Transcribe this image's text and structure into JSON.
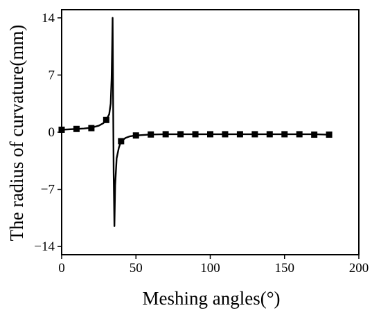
{
  "chart_data": {
    "type": "line",
    "title": "",
    "xlabel": "Meshing angles(°)",
    "ylabel": "The  radius of curvature(mm)",
    "xlim": [
      0,
      200
    ],
    "ylim": [
      -15,
      15
    ],
    "xticks": [
      0,
      50,
      100,
      150,
      200
    ],
    "yticks": [
      -14,
      -7,
      0,
      7,
      14
    ],
    "grid": false,
    "legend": "none",
    "line_color": "#000000",
    "series": [
      {
        "curve": [
          [
            0,
            0.3
          ],
          [
            5,
            0.35
          ],
          [
            10,
            0.4
          ],
          [
            15,
            0.45
          ],
          [
            20,
            0.55
          ],
          [
            25,
            0.8
          ],
          [
            28,
            1.1
          ],
          [
            30,
            1.5
          ],
          [
            32,
            2.2
          ],
          [
            33,
            3.5
          ],
          [
            33.6,
            6.5
          ],
          [
            34.0,
            10.5
          ],
          [
            34.3,
            14.0
          ],
          [
            34.6,
            5.0
          ],
          [
            35.0,
            -5.0
          ],
          [
            35.5,
            -11.5
          ],
          [
            36.0,
            -6.5
          ],
          [
            37.0,
            -3.2
          ],
          [
            38.5,
            -1.9
          ],
          [
            40,
            -1.1
          ],
          [
            43,
            -0.7
          ],
          [
            46,
            -0.5
          ],
          [
            50,
            -0.4
          ],
          [
            60,
            -0.28
          ],
          [
            70,
            -0.25
          ],
          [
            80,
            -0.25
          ],
          [
            90,
            -0.25
          ],
          [
            100,
            -0.25
          ],
          [
            110,
            -0.25
          ],
          [
            120,
            -0.25
          ],
          [
            130,
            -0.25
          ],
          [
            140,
            -0.25
          ],
          [
            150,
            -0.25
          ],
          [
            160,
            -0.25
          ],
          [
            170,
            -0.25
          ],
          [
            180,
            -0.3
          ]
        ],
        "markers": [
          [
            0,
            0.3
          ],
          [
            10,
            0.4
          ],
          [
            20,
            0.5
          ],
          [
            30,
            1.5
          ],
          [
            40,
            -1.1
          ],
          [
            50,
            -0.4
          ],
          [
            60,
            -0.28
          ],
          [
            70,
            -0.25
          ],
          [
            80,
            -0.25
          ],
          [
            90,
            -0.25
          ],
          [
            100,
            -0.25
          ],
          [
            110,
            -0.25
          ],
          [
            120,
            -0.25
          ],
          [
            130,
            -0.25
          ],
          [
            140,
            -0.25
          ],
          [
            150,
            -0.25
          ],
          [
            160,
            -0.25
          ],
          [
            170,
            -0.3
          ],
          [
            180,
            -0.3
          ]
        ]
      }
    ]
  }
}
